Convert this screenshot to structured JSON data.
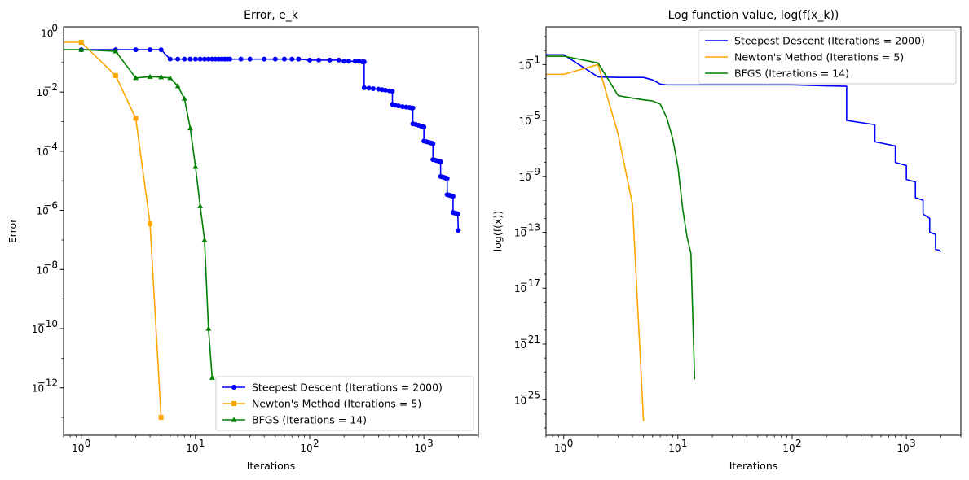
{
  "chart_data": [
    {
      "type": "line",
      "title": "Error, e_k",
      "xlabel": "Iterations",
      "ylabel": "Error",
      "xscale": "log",
      "yscale": "log",
      "xlim": [
        0.7,
        3000
      ],
      "ylim": [
        2.5e-14,
        1.6
      ],
      "x_ticks": [
        {
          "value": 1,
          "label": "10",
          "exp": "0"
        },
        {
          "value": 10,
          "label": "10",
          "exp": "1"
        },
        {
          "value": 100,
          "label": "10",
          "exp": "2"
        },
        {
          "value": 1000,
          "label": "10",
          "exp": "3"
        }
      ],
      "y_ticks": [
        {
          "value": 1,
          "label": "10",
          "exp": "0"
        },
        {
          "value": 0.01,
          "label": "10",
          "exp": "−2"
        },
        {
          "value": 0.0001,
          "label": "10",
          "exp": "−4"
        },
        {
          "value": 1e-06,
          "label": "10",
          "exp": "−6"
        },
        {
          "value": 1e-08,
          "label": "10",
          "exp": "−8"
        },
        {
          "value": 1e-10,
          "label": "10",
          "exp": "−10"
        },
        {
          "value": 1e-12,
          "label": "10",
          "exp": "−12"
        }
      ],
      "legend_position": "lower-right",
      "grid": false,
      "series": [
        {
          "name": "Steepest Descent (Iterations = 2000)",
          "color": "#0000ff",
          "marker": "circle",
          "x": [
            1,
            2,
            3,
            4,
            5,
            6,
            7,
            8,
            9,
            10,
            11,
            12,
            13,
            14,
            15,
            16,
            17,
            18,
            19,
            20,
            25,
            30,
            40,
            50,
            60,
            70,
            80,
            100,
            120,
            150,
            180,
            200,
            220,
            250,
            270,
            290,
            300,
            300,
            330,
            360,
            400,
            430,
            460,
            500,
            530,
            530,
            560,
            600,
            650,
            700,
            750,
            780,
            800,
            800,
            850,
            900,
            950,
            980,
            1000,
            1000,
            1050,
            1100,
            1150,
            1180,
            1200,
            1200,
            1250,
            1300,
            1350,
            1390,
            1400,
            1400,
            1450,
            1500,
            1550,
            1580,
            1600,
            1600,
            1650,
            1700,
            1750,
            1780,
            1800,
            1800,
            1850,
            1900,
            1950,
            1980,
            2000
          ],
          "y": [
            0.27,
            0.27,
            0.27,
            0.27,
            0.27,
            0.13,
            0.13,
            0.13,
            0.13,
            0.13,
            0.13,
            0.13,
            0.13,
            0.13,
            0.13,
            0.13,
            0.13,
            0.13,
            0.13,
            0.13,
            0.13,
            0.13,
            0.13,
            0.13,
            0.13,
            0.13,
            0.13,
            0.12,
            0.12,
            0.12,
            0.12,
            0.11,
            0.11,
            0.11,
            0.11,
            0.105,
            0.105,
            0.014,
            0.0135,
            0.013,
            0.0125,
            0.012,
            0.0115,
            0.011,
            0.0105,
            0.0038,
            0.0036,
            0.0034,
            0.0032,
            0.0031,
            0.003,
            0.0029,
            0.0029,
            0.00085,
            0.0008,
            0.00075,
            0.0007,
            0.00068,
            0.00066,
            0.00022,
            0.00021,
            0.0002,
            0.00019,
            0.000185,
            0.00018,
            5.2e-05,
            5e-05,
            4.8e-05,
            4.6e-05,
            4.5e-05,
            4.4e-05,
            1.4e-05,
            1.35e-05,
            1.3e-05,
            1.25e-05,
            1.2e-05,
            1.2e-05,
            3.4e-06,
            3.3e-06,
            3.2e-06,
            3.1e-06,
            3e-06,
            3e-06,
            8.5e-07,
            8.2e-07,
            8e-07,
            7.8e-07,
            7.6e-07,
            2.1e-07
          ]
        },
        {
          "name": "Newton's Method (Iterations = 5)",
          "color": "#ffa500",
          "marker": "square",
          "x": [
            0.7,
            1,
            2,
            3,
            4,
            5
          ],
          "y": [
            0.48,
            0.48,
            0.036,
            0.0013,
            3.5e-07,
            1e-13
          ]
        },
        {
          "name": "BFGS (Iterations = 14)",
          "color": "#008000",
          "marker": "triangle",
          "x": [
            0.7,
            1,
            2,
            3,
            4,
            5,
            6,
            7,
            8,
            9,
            10,
            11,
            12,
            13,
            14
          ],
          "y": [
            0.27,
            0.27,
            0.24,
            0.03,
            0.033,
            0.032,
            0.03,
            0.016,
            0.006,
            0.0006,
            3e-05,
            1.4e-06,
            1e-07,
            1e-10,
            2.2e-12
          ]
        }
      ]
    },
    {
      "type": "line",
      "title": "Log function value, log(f(x_k))",
      "xlabel": "Iterations",
      "ylabel": "log(f(x))",
      "xscale": "log",
      "yscale": "log",
      "xlim": [
        0.7,
        3000
      ],
      "ylim": [
        3e-28,
        50
      ],
      "x_ticks": [
        {
          "value": 1,
          "label": "10",
          "exp": "0"
        },
        {
          "value": 10,
          "label": "10",
          "exp": "1"
        },
        {
          "value": 100,
          "label": "10",
          "exp": "2"
        },
        {
          "value": 1000,
          "label": "10",
          "exp": "3"
        }
      ],
      "y_ticks": [
        {
          "value": 0.1,
          "label": "10",
          "exp": "−1"
        },
        {
          "value": 1e-05,
          "label": "10",
          "exp": "−5"
        },
        {
          "value": 1e-09,
          "label": "10",
          "exp": "−9"
        },
        {
          "value": 1e-13,
          "label": "10",
          "exp": "−13"
        },
        {
          "value": 1e-17,
          "label": "10",
          "exp": "−17"
        },
        {
          "value": 1e-21,
          "label": "10",
          "exp": "−21"
        },
        {
          "value": 1e-25,
          "label": "10",
          "exp": "−25"
        }
      ],
      "legend_position": "upper-right",
      "grid": false,
      "series": [
        {
          "name": "Steepest Descent (Iterations = 2000)",
          "color": "#0000ff",
          "x": [
            0.7,
            1,
            2,
            3,
            4,
            5,
            6,
            7,
            8,
            10,
            20,
            50,
            100,
            200,
            300,
            300,
            530,
            530,
            800,
            800,
            1000,
            1000,
            1200,
            1200,
            1400,
            1400,
            1600,
            1600,
            1800,
            1800,
            1950,
            2000
          ],
          "y": [
            0.5,
            0.5,
            0.013,
            0.012,
            0.012,
            0.012,
            0.008,
            0.004,
            0.0035,
            0.0035,
            0.0035,
            0.0035,
            0.0035,
            0.003,
            0.0028,
            1e-05,
            5e-06,
            3e-07,
            1.5e-07,
            1e-08,
            6e-09,
            6e-10,
            4e-10,
            3e-11,
            2e-11,
            2e-12,
            1e-12,
            1e-13,
            7e-14,
            6e-15,
            5e-15,
            4e-15
          ]
        },
        {
          "name": "Newton's Method (Iterations = 5)",
          "color": "#ffa500",
          "x": [
            0.7,
            1,
            2,
            3,
            4,
            5
          ],
          "y": [
            0.02,
            0.02,
            0.1,
            1e-06,
            1e-11,
            3e-27
          ]
        },
        {
          "name": "BFGS (Iterations = 14)",
          "color": "#008000",
          "x": [
            0.7,
            1,
            2,
            3,
            4,
            5,
            6,
            7,
            8,
            9,
            10,
            11,
            12,
            13,
            14
          ],
          "y": [
            0.4,
            0.4,
            0.13,
            0.0006,
            0.0004,
            0.0003,
            0.00025,
            0.00015,
            1.5e-05,
            5e-07,
            5e-09,
            5e-12,
            5e-14,
            3e-15,
            3e-24
          ]
        }
      ]
    }
  ]
}
